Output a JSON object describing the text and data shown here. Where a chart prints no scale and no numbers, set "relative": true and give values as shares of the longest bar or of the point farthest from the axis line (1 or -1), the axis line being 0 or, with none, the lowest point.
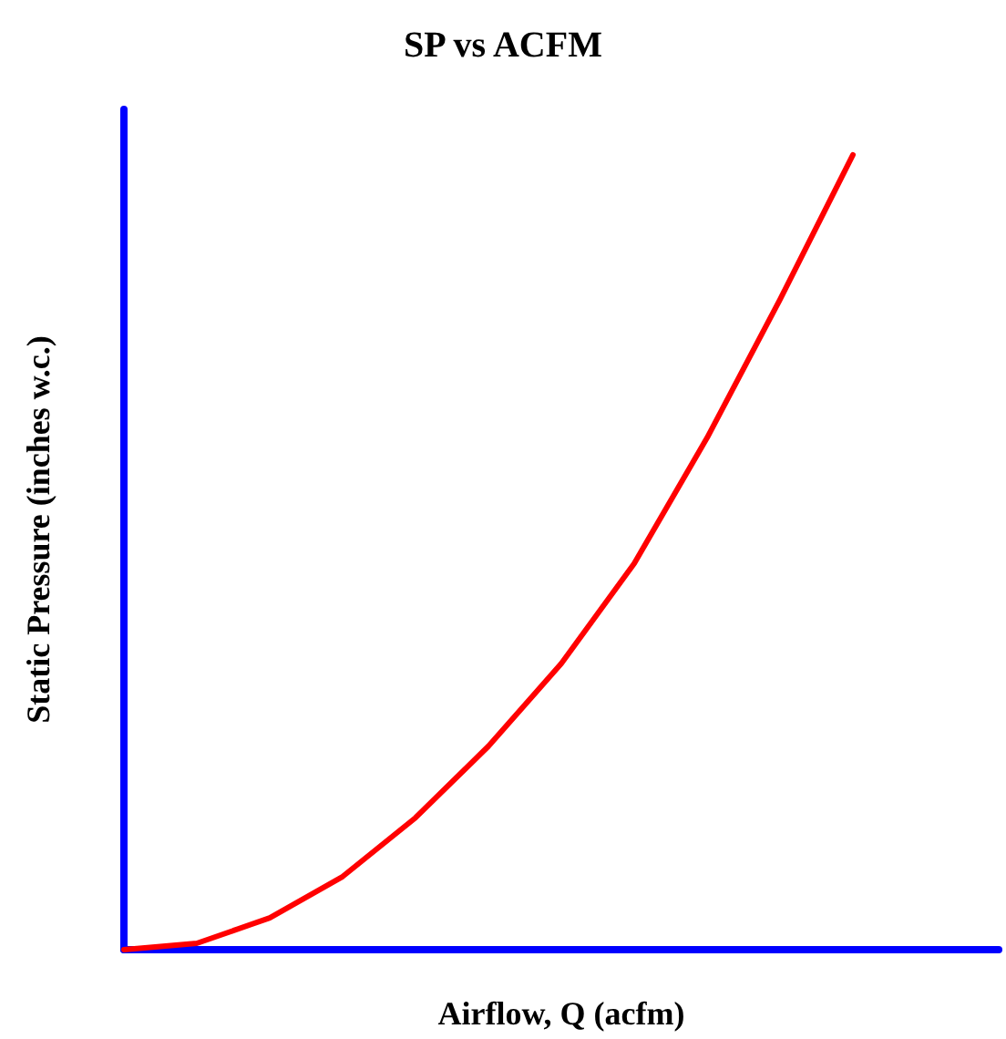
{
  "chart_data": {
    "type": "line",
    "title": "SP vs ACFM",
    "xlabel": "Airflow, Q (acfm)",
    "ylabel": "Static Pressure (inches w.c.)",
    "categories": [
      null,
      null,
      null,
      null,
      null,
      null,
      null,
      null,
      null,
      null,
      null,
      null,
      null
    ],
    "series": [
      {
        "color": "#ff0000",
        "values": [
          0,
          0.008,
          0.04,
          0.092,
          0.166,
          0.256,
          0.36,
          0.486,
          0.644,
          0.818,
          1,
          null,
          null
        ]
      }
    ],
    "relative": true,
    "marker": "none",
    "line_style": "solid"
  }
}
